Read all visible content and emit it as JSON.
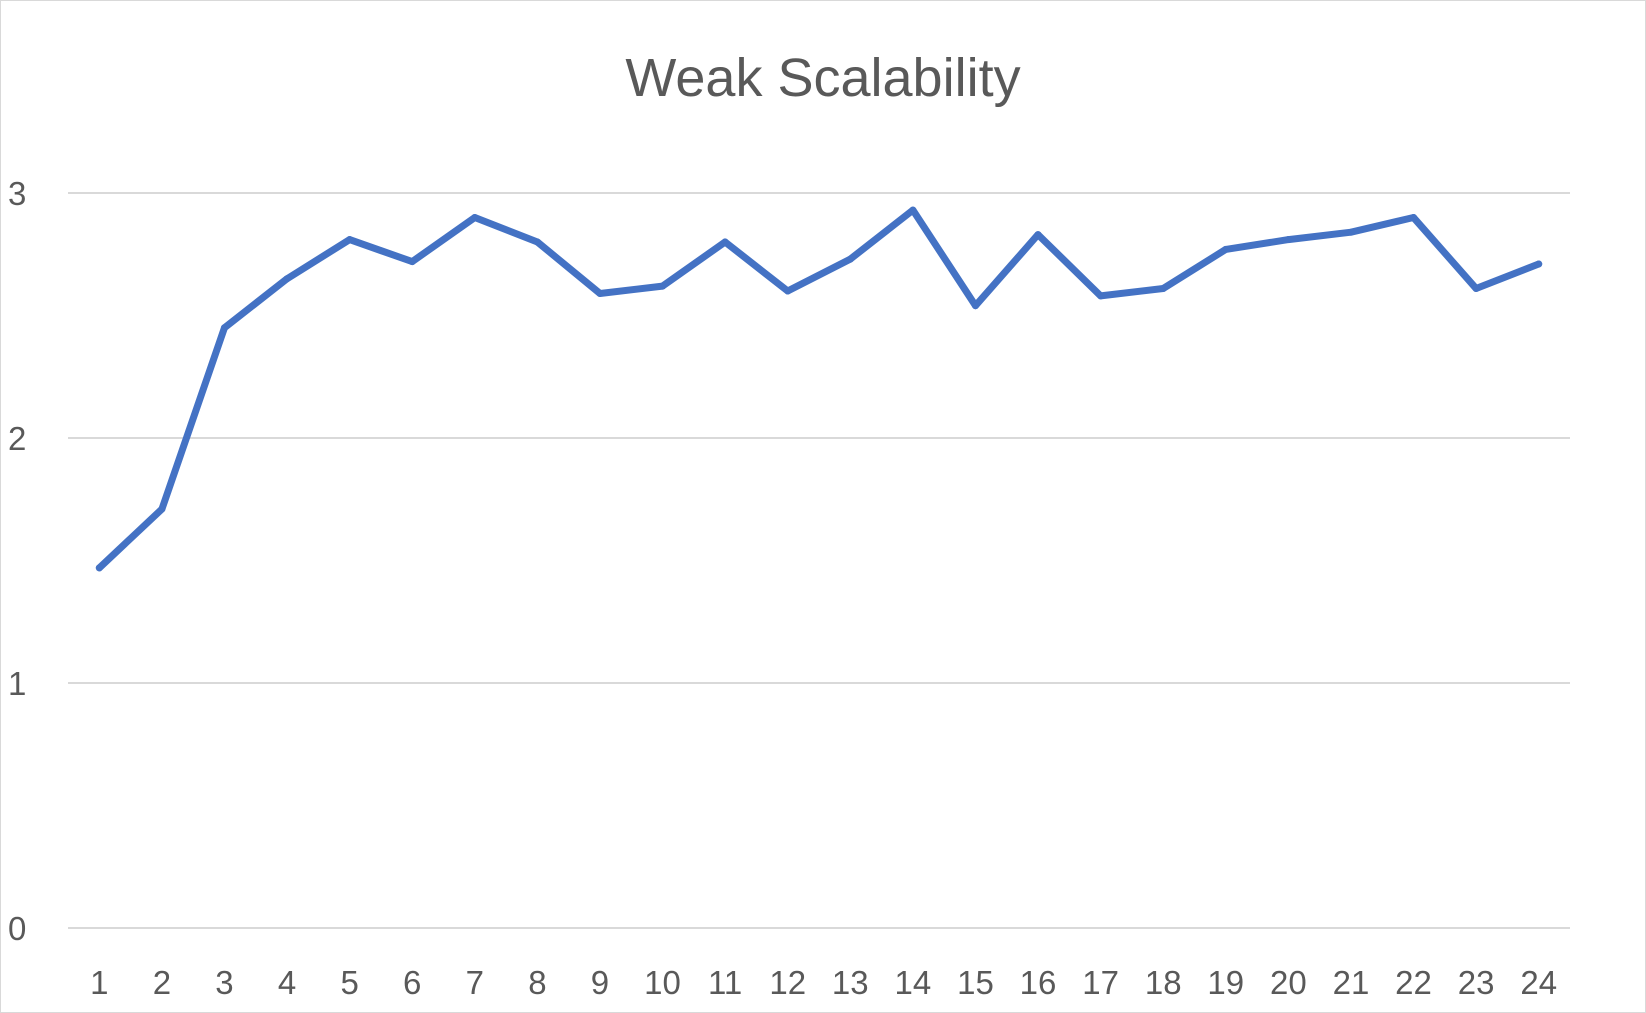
{
  "chart_data": {
    "type": "line",
    "title": "Weak Scalability",
    "xlabel": "",
    "ylabel": "",
    "categories": [
      "1",
      "2",
      "3",
      "4",
      "5",
      "6",
      "7",
      "8",
      "9",
      "10",
      "11",
      "12",
      "13",
      "14",
      "15",
      "16",
      "17",
      "18",
      "19",
      "20",
      "21",
      "22",
      "23",
      "24"
    ],
    "series": [
      {
        "color": "#4472c4",
        "values": [
          1.47,
          1.71,
          2.45,
          2.65,
          2.81,
          2.72,
          2.9,
          2.8,
          2.59,
          2.62,
          2.8,
          2.6,
          2.73,
          2.93,
          2.54,
          2.83,
          2.58,
          2.61,
          2.77,
          2.81,
          2.84,
          2.9,
          2.61,
          2.71
        ]
      }
    ],
    "ylim": [
      0,
      3
    ],
    "yticks": [
      "0",
      "1",
      "2",
      "3"
    ],
    "grid": true,
    "legend": "none",
    "colors": {
      "text": "#595959",
      "grid": "#d9d9d9",
      "border": "#d9d9d9",
      "background": "#ffffff"
    }
  }
}
